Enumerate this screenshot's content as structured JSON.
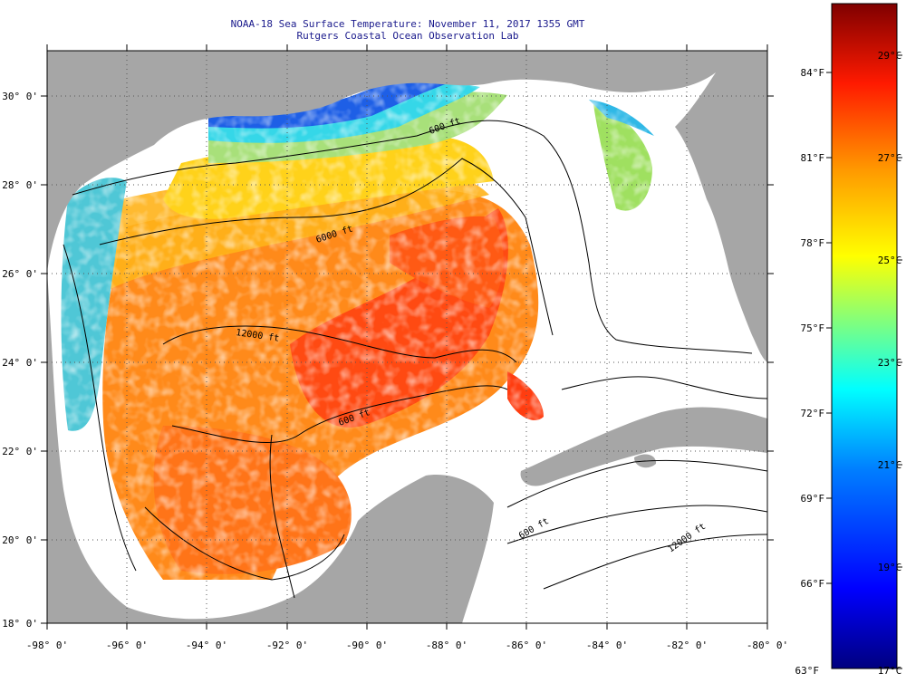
{
  "title": {
    "line1": "NOAA-18 Sea Surface Temperature:  November 11, 2017 1355 GMT",
    "line2": "Rutgers Coastal Ocean Observation Lab"
  },
  "map": {
    "lon_range": [
      -98,
      -80
    ],
    "lat_range": [
      18,
      31
    ],
    "lon_ticks": [
      "-98° 0'",
      "-96° 0'",
      "-94° 0'",
      "-92° 0'",
      "-90° 0'",
      "-88° 0'",
      "-86° 0'",
      "-84° 0'",
      "-82° 0'",
      "-80° 0'"
    ],
    "lat_ticks": [
      "18° 0'",
      "20° 0'",
      "22° 0'",
      "24° 0'",
      "26° 0'",
      "28° 0'",
      "30° 0'"
    ],
    "contour_labels": [
      "600 ft",
      "6000 ft",
      "12000 ft",
      "600 ft",
      "600 ft",
      "12000 ft"
    ],
    "colors": {
      "land": "#a6a6a6",
      "no_data": "#ffffff"
    }
  },
  "colorbar": {
    "fahrenheit_labels": [
      "84°F",
      "81°F",
      "78°F",
      "75°F",
      "72°F",
      "69°F",
      "66°F",
      "63°F"
    ],
    "celsius_labels": [
      "29°C",
      "27°C",
      "25°C",
      "23°C",
      "21°C",
      "19°C",
      "17°C"
    ],
    "range_f": [
      63,
      86
    ],
    "colors": [
      "#00007f",
      "#0000ff",
      "#007fff",
      "#00ffff",
      "#7fff7f",
      "#ffff00",
      "#ff7f00",
      "#ff0000",
      "#7f0000"
    ]
  }
}
